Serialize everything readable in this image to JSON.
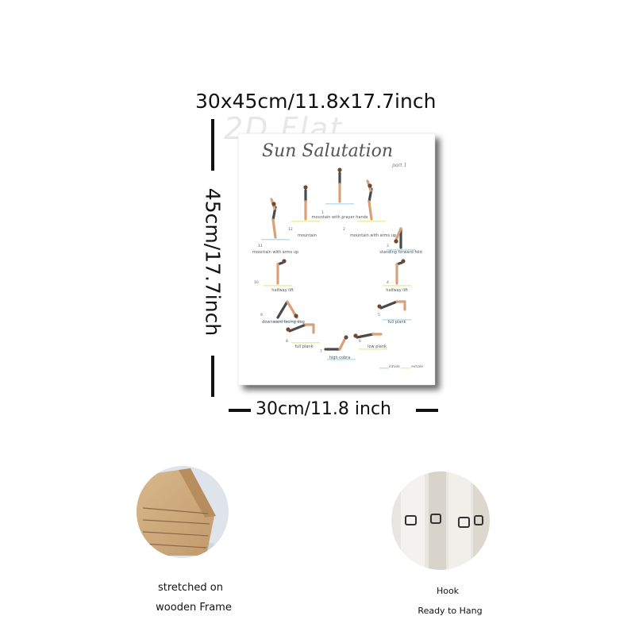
{
  "dimensions": {
    "overall": "30x45cm/11.8x17.7inch",
    "height": "45cm/17.7inch",
    "width": "30cm/11.8 inch"
  },
  "watermark": "2D Flat",
  "poster": {
    "title": "Sun Salutation",
    "subtitle": "part 1",
    "poses": [
      {
        "number": 1,
        "label": "mountain with prayer hands"
      },
      {
        "number": 2,
        "label": "mountain with arms up"
      },
      {
        "number": 3,
        "label": "standing forward fold"
      },
      {
        "number": 4,
        "label": "halfway lift"
      },
      {
        "number": 5,
        "label": "full plank"
      },
      {
        "number": 6,
        "label": "low plank"
      },
      {
        "number": 7,
        "label": "high cobra"
      },
      {
        "number": 8,
        "label": "full plank"
      },
      {
        "number": 9,
        "label": "downward facing dog"
      },
      {
        "number": 10,
        "label": "halfway lift"
      },
      {
        "number": 11,
        "label": "mountain with arms up"
      },
      {
        "number": 12,
        "label": "mountain"
      }
    ],
    "legend": [
      "inhale",
      "exhale"
    ]
  },
  "features": [
    {
      "caption": [
        "stretched on",
        "wooden Frame"
      ]
    },
    {
      "caption": [
        "Hook",
        "Ready to Hang"
      ]
    }
  ]
}
